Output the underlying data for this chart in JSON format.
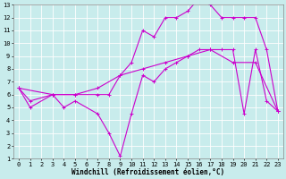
{
  "title": "",
  "xlabel": "Windchill (Refroidissement éolien,°C)",
  "ylabel": "",
  "xlim": [
    -0.5,
    23.5
  ],
  "ylim": [
    1,
    13
  ],
  "xticks": [
    0,
    1,
    2,
    3,
    4,
    5,
    6,
    7,
    8,
    9,
    10,
    11,
    12,
    13,
    14,
    15,
    16,
    17,
    18,
    19,
    20,
    21,
    22,
    23
  ],
  "yticks": [
    1,
    2,
    3,
    4,
    5,
    6,
    7,
    8,
    9,
    10,
    11,
    12,
    13
  ],
  "background_color": "#c8ecec",
  "grid_color": "#ffffff",
  "line_color": "#cc00cc",
  "line1_x": [
    0,
    1,
    3,
    4,
    5,
    7,
    8,
    9,
    10,
    11,
    12,
    13,
    14,
    15,
    16,
    17,
    18,
    19,
    20,
    21,
    22,
    23
  ],
  "line1_y": [
    6.5,
    5.0,
    6.0,
    5.0,
    5.5,
    4.5,
    3.0,
    1.2,
    4.5,
    7.5,
    7.0,
    8.0,
    8.5,
    9.0,
    9.5,
    9.5,
    9.5,
    9.5,
    4.5,
    9.5,
    5.5,
    4.7
  ],
  "line2_x": [
    0,
    1,
    3,
    5,
    7,
    8,
    9,
    10,
    11,
    12,
    13,
    14,
    15,
    16,
    17,
    18,
    19,
    20,
    21,
    22,
    23
  ],
  "line2_y": [
    6.5,
    5.5,
    6.0,
    6.0,
    6.0,
    6.0,
    7.5,
    8.5,
    11.0,
    10.5,
    12.0,
    12.0,
    12.5,
    13.5,
    13.0,
    12.0,
    12.0,
    12.0,
    12.0,
    9.5,
    4.7
  ],
  "line3_x": [
    0,
    3,
    5,
    7,
    9,
    11,
    13,
    15,
    17,
    19,
    21,
    23
  ],
  "line3_y": [
    6.5,
    6.0,
    6.0,
    6.5,
    7.5,
    8.0,
    8.5,
    9.0,
    9.5,
    8.5,
    8.5,
    4.7
  ],
  "marker": "+",
  "markersize": 3,
  "linewidth": 0.8,
  "tick_fontsize": 5,
  "label_fontsize": 5.5
}
